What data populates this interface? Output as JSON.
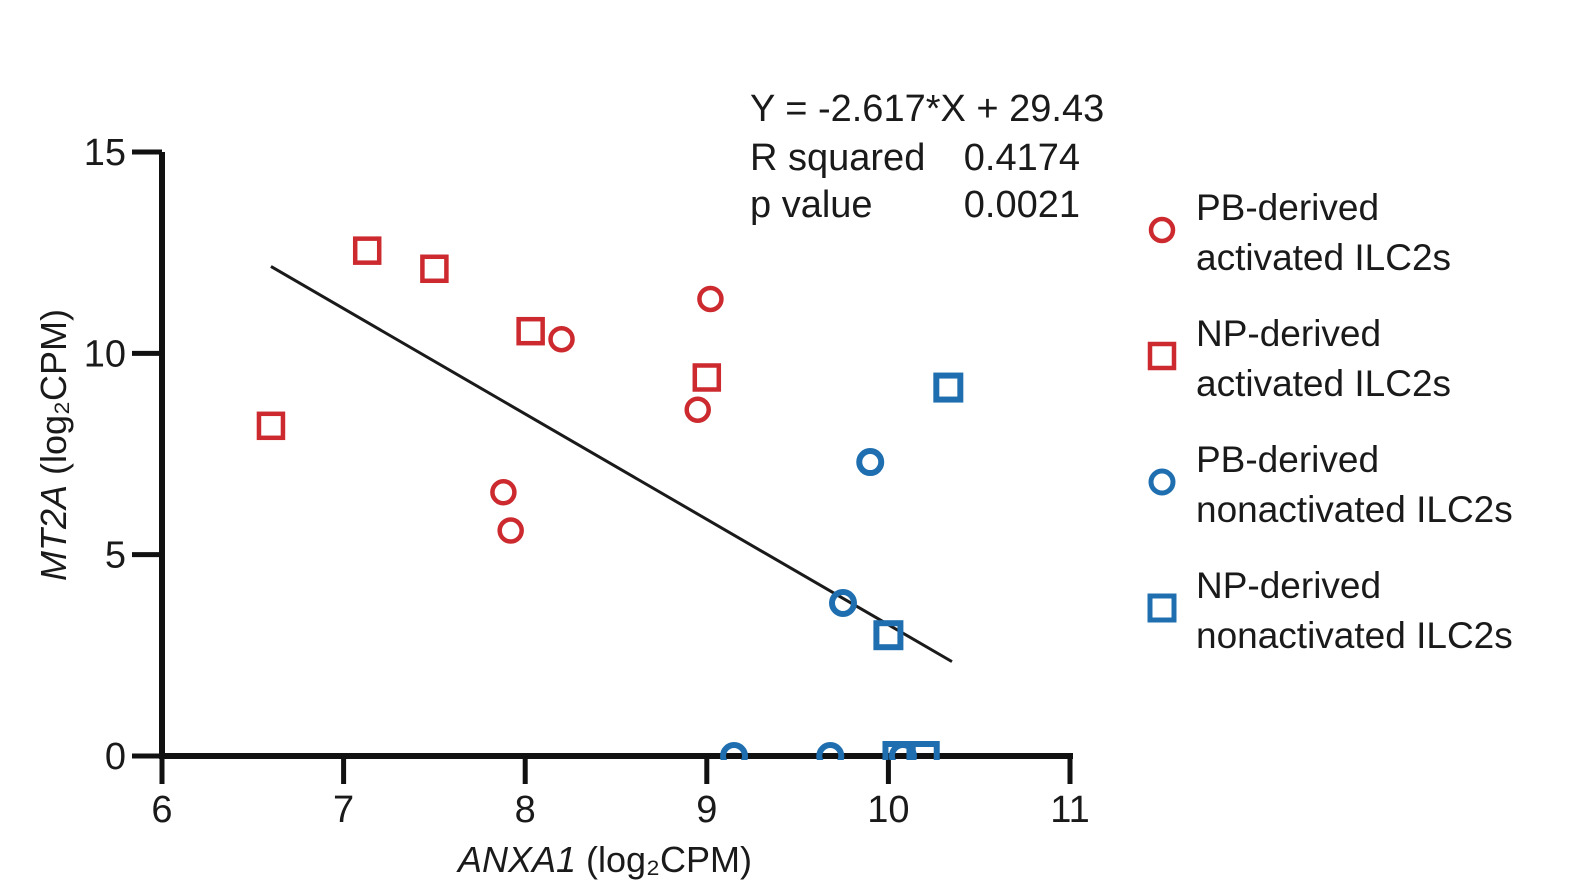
{
  "chart_data": {
    "type": "scatter",
    "xlabel": {
      "gene": "ANXA1",
      "unit": "(log₂CPM)"
    },
    "ylabel": {
      "gene": "MT2A",
      "unit": "(log₂CPM)"
    },
    "xlim": [
      6,
      11
    ],
    "ylim": [
      0,
      15
    ],
    "x_ticks": [
      "6",
      "7",
      "8",
      "9",
      "10",
      "11"
    ],
    "y_ticks": [
      "0",
      "5",
      "10",
      "15"
    ],
    "regression": {
      "equation": "Y = -2.617*X + 29.43",
      "r_squared_label": "R squared",
      "r_squared": "0.4174",
      "p_value_label": "p value",
      "p_value": "0.0021",
      "slope": -2.617,
      "intercept": 29.43,
      "x_range": [
        6.6,
        10.35
      ]
    },
    "legend_position": "right",
    "series": [
      {
        "name": [
          "PB-derived",
          "activated ILC2s"
        ],
        "marker": "circle-open",
        "color": "#cc2a2e",
        "points": [
          [
            8.2,
            10.35
          ],
          [
            9.02,
            11.35
          ],
          [
            8.95,
            8.6
          ],
          [
            7.88,
            6.55
          ],
          [
            7.92,
            5.6
          ]
        ]
      },
      {
        "name": [
          "NP-derived",
          "activated ILC2s"
        ],
        "marker": "square-open",
        "color": "#cc2a2e",
        "points": [
          [
            7.13,
            12.55
          ],
          [
            7.5,
            12.1
          ],
          [
            8.03,
            10.55
          ],
          [
            9.0,
            9.4
          ],
          [
            6.6,
            8.2
          ]
        ]
      },
      {
        "name": [
          "PB-derived",
          "nonactivated ILC2s"
        ],
        "marker": "circle-open",
        "color": "#1f6fb0",
        "points": [
          [
            9.9,
            7.3
          ],
          [
            9.75,
            3.8
          ],
          [
            9.15,
            0.0
          ],
          [
            9.68,
            0.0
          ],
          [
            10.08,
            0.0
          ]
        ]
      },
      {
        "name": [
          "NP-derived",
          "nonactivated ILC2s"
        ],
        "marker": "square-open",
        "color": "#1f6fb0",
        "points": [
          [
            10.33,
            9.15
          ],
          [
            10.0,
            3.0
          ],
          [
            10.05,
            0.0
          ],
          [
            10.2,
            0.0
          ]
        ]
      }
    ]
  }
}
